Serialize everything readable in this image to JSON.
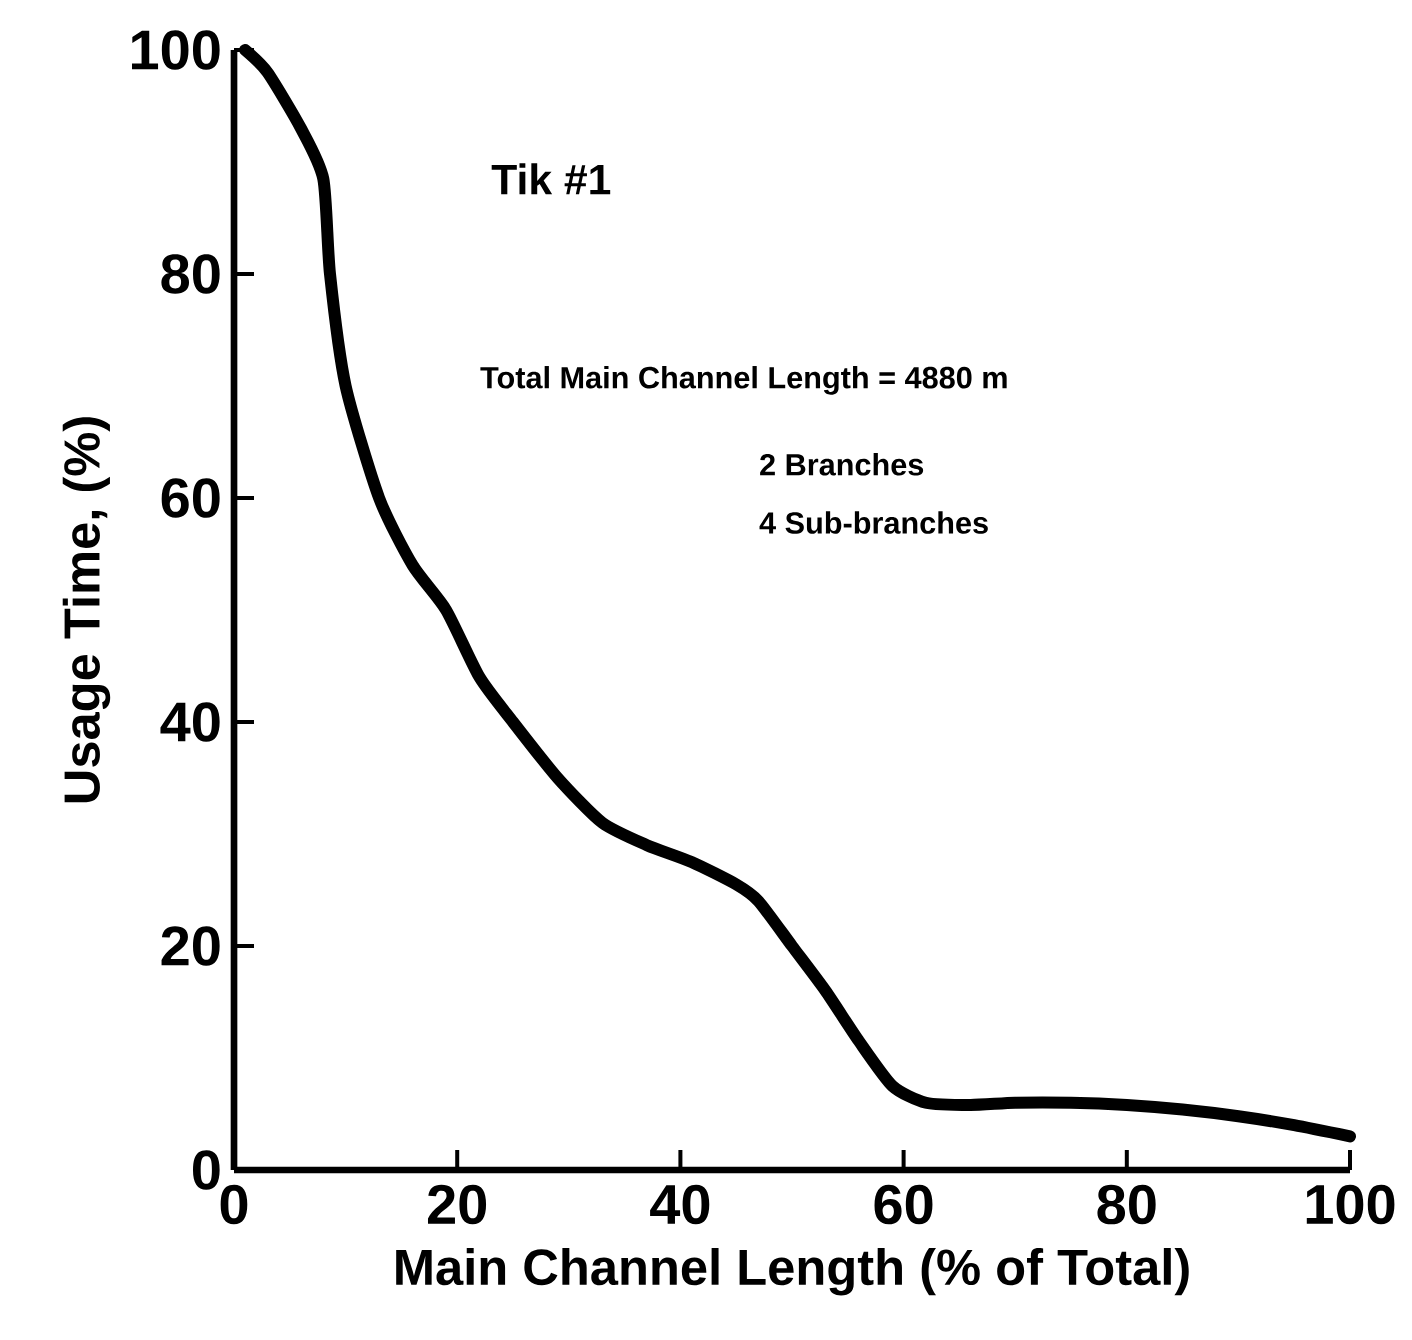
{
  "chart_data": {
    "type": "line",
    "xlabel": "Main Channel Length (% of Total)",
    "ylabel": "Usage Time, (%)",
    "annotations": [
      "Tik #1",
      "Total Main Channel Length = 4880 m",
      "2 Branches",
      "4 Sub-branches"
    ],
    "x": [
      1,
      3,
      6,
      8,
      8.6,
      10,
      13,
      16,
      19,
      22,
      25,
      29,
      33,
      37,
      41,
      45,
      47,
      50,
      53,
      56,
      59,
      62,
      66,
      70,
      75,
      80,
      85,
      90,
      95,
      100
    ],
    "series": [
      {
        "color": "#000000",
        "values": [
          100,
          98,
          93,
          88.5,
          80,
          70,
          60,
          54,
          50,
          44,
          40,
          35,
          31,
          29,
          27.5,
          25.5,
          24,
          20,
          16,
          11.5,
          7.5,
          6,
          5.8,
          6,
          6,
          5.8,
          5.4,
          4.8,
          4,
          3
        ]
      }
    ],
    "xlim": [
      0,
      100
    ],
    "ylim": [
      0,
      100
    ],
    "xticks": [
      0,
      20,
      40,
      60,
      80,
      100
    ],
    "yticks": [
      0,
      20,
      40,
      60,
      80,
      100
    ],
    "grid": false,
    "marker": "none",
    "line_style": "solid"
  }
}
